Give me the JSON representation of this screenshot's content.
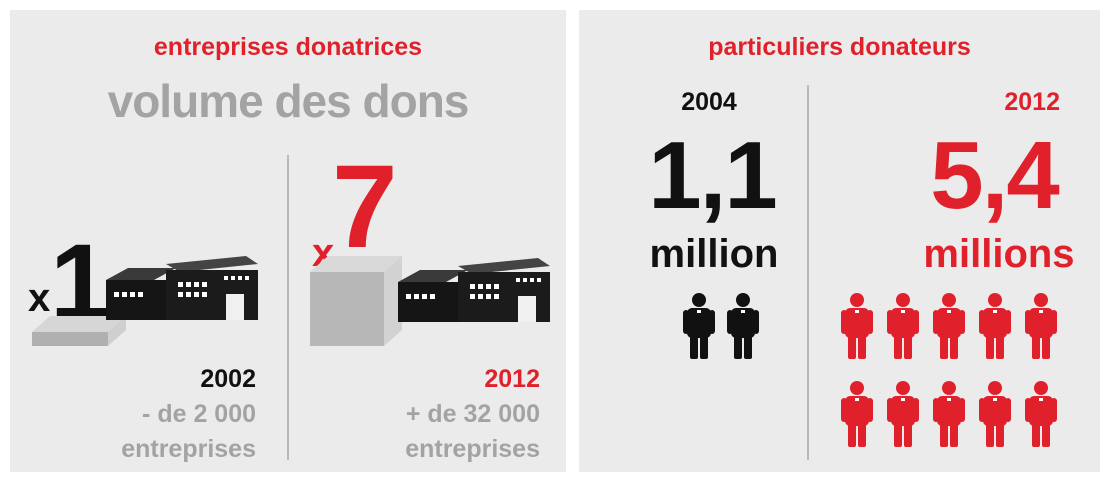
{
  "companies": {
    "title": "entreprises donatrices",
    "subtitle": "volume des dons",
    "left": {
      "multiplier_prefix": "x",
      "multiplier_value": "1",
      "year": "2002",
      "count": "- de 2 000",
      "unit": "entreprises"
    },
    "right": {
      "multiplier_prefix": "x",
      "multiplier_value": "7",
      "year": "2012",
      "count": "+ de 32 000",
      "unit": "entreprises"
    }
  },
  "individuals": {
    "title": "particuliers donateurs",
    "left": {
      "year": "2004",
      "value": "1,1",
      "unit": "million",
      "person_icons": 2
    },
    "right": {
      "year": "2012",
      "value": "5,4",
      "unit": "millions",
      "person_icons": 10
    }
  },
  "colors": {
    "accent": "#e0212b",
    "dark": "#111111",
    "grey_text": "#a3a3a3",
    "panel": "#ebebeb"
  }
}
